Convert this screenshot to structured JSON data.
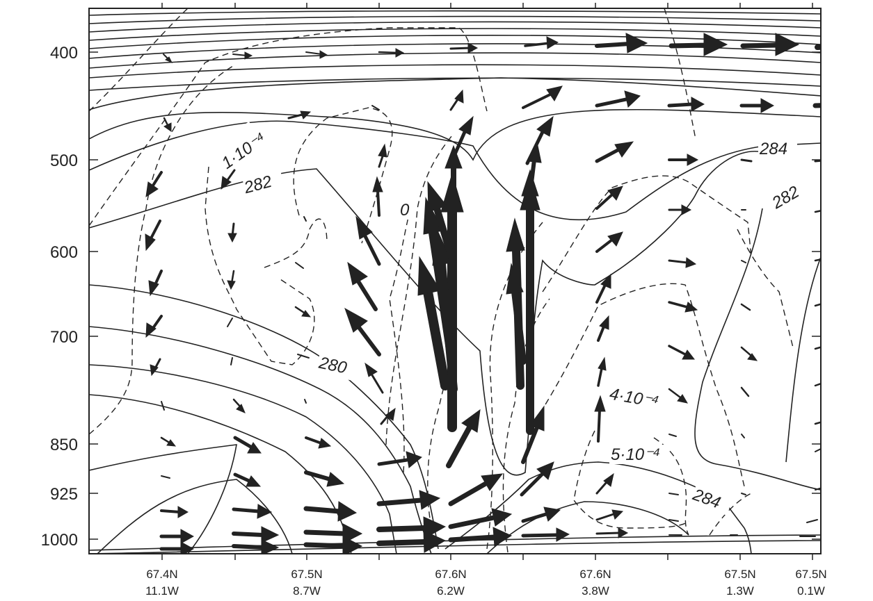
{
  "chart_data": {
    "type": "cross-section",
    "title": "",
    "xlabel": "",
    "ylabel": "",
    "y_scale": "pressure (hPa), decreasing upward",
    "y_ticks": [
      "400",
      "500",
      "600",
      "700",
      "850",
      "925",
      "1000"
    ],
    "x_ticks": [
      {
        "lat": "67.4N",
        "lon": "11.1W"
      },
      {
        "lat": "67.5N",
        "lon": "8.7W"
      },
      {
        "lat": "67.6N",
        "lon": "6.2W"
      },
      {
        "lat": "67.6N",
        "lon": "3.8W"
      },
      {
        "lat": "67.5N",
        "lon": "1.3W"
      },
      {
        "lat": "67.5N",
        "lon": "0.1W"
      }
    ],
    "solid_contour_labels": [
      "280",
      "282",
      "282",
      "284",
      "284"
    ],
    "dashed_contour_labels": [
      "1·10⁻⁴",
      "0",
      "4·10⁻⁴",
      "5·10⁻⁴"
    ],
    "vectors_shown": true,
    "grid": false,
    "colors": {
      "line": "#222222",
      "background": "#ffffff"
    }
  }
}
